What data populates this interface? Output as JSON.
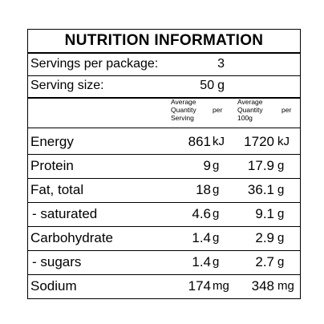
{
  "panel": {
    "title": "NUTRITION INFORMATION",
    "servings_per_package": {
      "label": "Servings per package:",
      "value": "3",
      "unit": ""
    },
    "serving_size": {
      "label": "Serving size:",
      "value": "50",
      "unit": "g"
    },
    "column_headers": {
      "per_serving": [
        "Average",
        "Quantity",
        "per",
        "Serving"
      ],
      "per_100g": [
        "Average",
        "Quantity",
        "per",
        "100g"
      ]
    },
    "rows": [
      {
        "label": "Energy",
        "per_serving": "861",
        "per_serving_unit": "kJ",
        "per_100g": "1720",
        "per_100g_unit": "kJ"
      },
      {
        "label": "Protein",
        "per_serving": "9",
        "per_serving_unit": "g",
        "per_100g": "17.9",
        "per_100g_unit": "g"
      },
      {
        "label": "Fat, total",
        "per_serving": "18",
        "per_serving_unit": "g",
        "per_100g": "36.1",
        "per_100g_unit": "g"
      },
      {
        "label": "- saturated",
        "per_serving": "4.6",
        "per_serving_unit": "g",
        "per_100g": "9.1",
        "per_100g_unit": "g"
      },
      {
        "label": "Carbohydrate",
        "per_serving": "1.4",
        "per_serving_unit": "g",
        "per_100g": "2.9",
        "per_100g_unit": "g"
      },
      {
        "label": "- sugars",
        "per_serving": "1.4",
        "per_serving_unit": "g",
        "per_100g": "2.7",
        "per_100g_unit": "g"
      },
      {
        "label": "Sodium",
        "per_serving": "174",
        "per_serving_unit": "mg",
        "per_100g": "348",
        "per_100g_unit": "mg"
      }
    ]
  }
}
